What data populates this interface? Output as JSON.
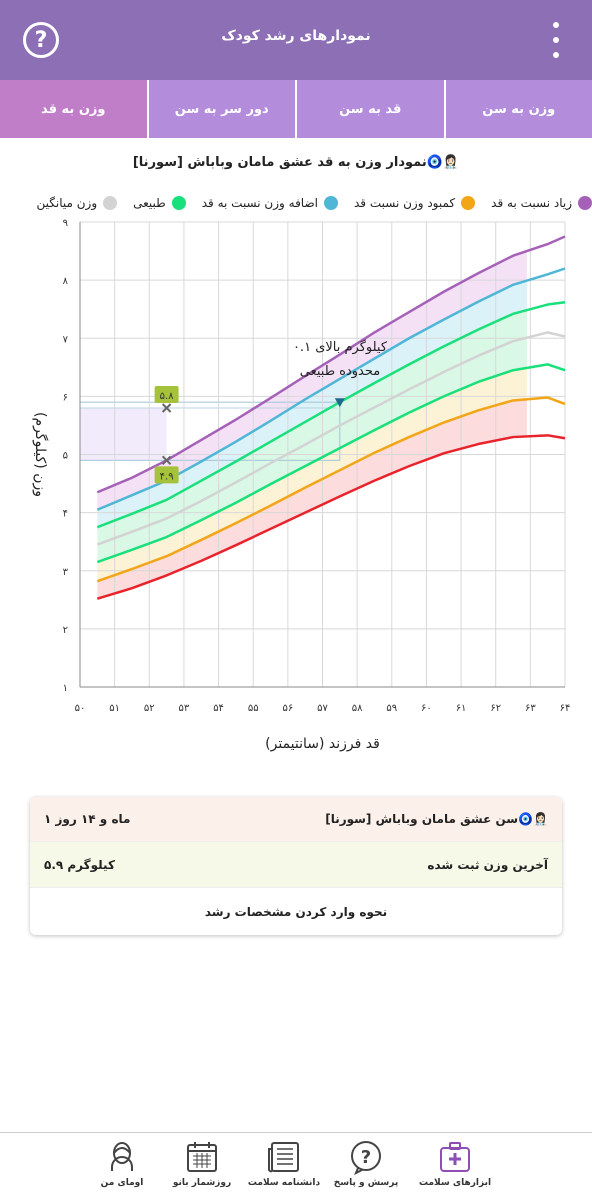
{
  "header": {
    "title": "نمودارهای رشد کودک"
  },
  "tabs": [
    {
      "label": "وزن به سن",
      "active": false
    },
    {
      "label": "قد به سن",
      "active": false
    },
    {
      "label": "دور سر به سن",
      "active": false
    },
    {
      "label": "وزن به قد",
      "active": true
    }
  ],
  "chart_title": "نمودار وزن به قد عشق مامان وباباش [سورنا]🧿👩🏻‍⚕️",
  "legend": [
    {
      "label": "زیاد نسبت به قد",
      "color": "#a561b8"
    },
    {
      "label": "کمبود وزن نسبت قد",
      "color": "#f2a516"
    },
    {
      "label": "اضافه وزن نسبت به قد",
      "color": "#4fb6d6"
    },
    {
      "label": "طبیعی",
      "color": "#19e07a"
    },
    {
      "label": "وزن میانگین",
      "color": "#d3d3d3"
    }
  ],
  "chart_data": {
    "type": "line",
    "xlabel": "قد فرزند (سانتیمتر)",
    "ylabel": "وزن (کیلوگرم)",
    "xlim": [
      50,
      64
    ],
    "ylim": [
      1,
      9
    ],
    "x_ticks": [
      "۵۰",
      "۵۱",
      "۵۲",
      "۵۳",
      "۵۴",
      "۵۵",
      "۵۶",
      "۵۷",
      "۵۸",
      "۵۹",
      "۶۰",
      "۶۱",
      "۶۲",
      "۶۳",
      "۶۴"
    ],
    "y_ticks": [
      "۱",
      "۲",
      "۳",
      "۴",
      "۵",
      "۶",
      "۷",
      "۸",
      "۹"
    ],
    "x": [
      50.5,
      51.5,
      52.5,
      53.5,
      54.5,
      55.5,
      56.5,
      57.5,
      58.5,
      59.5,
      60.5,
      61.5,
      62.5,
      63.5,
      64
    ],
    "series": [
      {
        "color": "#a561b8",
        "values": [
          4.35,
          4.6,
          4.9,
          5.25,
          5.6,
          5.97,
          6.35,
          6.72,
          7.1,
          7.45,
          7.8,
          8.12,
          8.42,
          8.62,
          8.75
        ]
      },
      {
        "color": "#4fb6d6",
        "values": [
          4.05,
          4.3,
          4.55,
          4.88,
          5.22,
          5.58,
          5.95,
          6.3,
          6.65,
          7.0,
          7.32,
          7.63,
          7.92,
          8.1,
          8.2
        ]
      },
      {
        "color": "#19e07a",
        "values": [
          3.75,
          3.98,
          4.22,
          4.55,
          4.88,
          5.22,
          5.56,
          5.9,
          6.23,
          6.55,
          6.86,
          7.15,
          7.42,
          7.58,
          7.62
        ]
      },
      {
        "color": "#d3d3d3",
        "values": [
          3.45,
          3.67,
          3.9,
          4.2,
          4.52,
          4.85,
          5.17,
          5.5,
          5.81,
          6.12,
          6.42,
          6.7,
          6.95,
          7.1,
          7.03
        ]
      },
      {
        "color": "#19e07a",
        "values": [
          3.15,
          3.36,
          3.58,
          3.87,
          4.17,
          4.49,
          4.8,
          5.11,
          5.42,
          5.72,
          6.0,
          6.25,
          6.45,
          6.55,
          6.45
        ]
      },
      {
        "color": "#f2a516",
        "values": [
          2.82,
          3.03,
          3.25,
          3.53,
          3.82,
          4.12,
          4.43,
          4.73,
          5.03,
          5.3,
          5.55,
          5.76,
          5.93,
          5.98,
          5.87
        ]
      },
      {
        "color": "#e8232b",
        "values": [
          2.52,
          2.7,
          2.92,
          3.17,
          3.44,
          3.72,
          4.0,
          4.28,
          4.55,
          4.8,
          5.02,
          5.18,
          5.3,
          5.33,
          5.28
        ]
      }
    ],
    "points": [
      {
        "x": 52.5,
        "y": 5.8,
        "label": "۵.۸"
      },
      {
        "x": 52.5,
        "y": 4.9,
        "label": "۴.۹"
      }
    ],
    "marker": {
      "x": 57.5,
      "y": 5.9
    },
    "annotation": {
      "line1": "۰.۱ کیلوگرم بالای",
      "line2": "محدوده طبیعی"
    }
  },
  "card": {
    "age_label": "سن عشق مامان وباباش [سورنا]🧿👩🏻‍⚕️",
    "age_value": "۱ ماه و ۱۴ روز",
    "weight_label": "آخرین وزن ثبت شده",
    "weight_value": "۵.۹ کیلوگرم",
    "how_to": "نحوه وارد کردن مشخصات رشد"
  },
  "bottom_nav": [
    {
      "label": "ابزارهای سلامت",
      "icon": "medical-kit-icon",
      "active": true
    },
    {
      "label": "پرسش و پاسخ",
      "icon": "question-bubble-icon",
      "active": false
    },
    {
      "label": "دانشنامه سلامت",
      "icon": "newspaper-icon",
      "active": false
    },
    {
      "label": "روزشمار بانو",
      "icon": "calendar-icon",
      "active": false
    },
    {
      "label": "اومای من",
      "icon": "user-avatar-icon",
      "active": false
    }
  ]
}
